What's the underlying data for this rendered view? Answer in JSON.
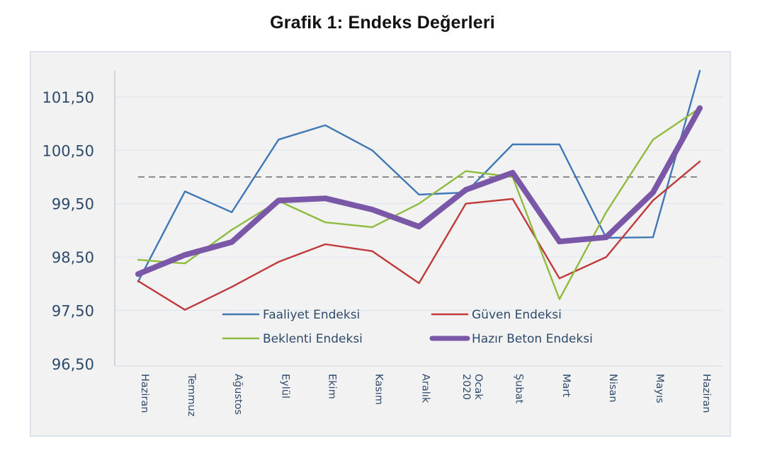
{
  "chart_data": {
    "type": "line",
    "title": "Grafik 1: Endeks Değerleri",
    "xlabel": "",
    "ylabel": "",
    "ylim": [
      96.5,
      102.0
    ],
    "yticks": [
      96.5,
      97.5,
      98.5,
      99.5,
      100.5,
      101.5
    ],
    "ytick_labels": [
      "96,50",
      "97,50",
      "98,50",
      "99,50",
      "100,50",
      "101,50"
    ],
    "grid": true,
    "reference_line": {
      "value": 100.0,
      "style": "dashed",
      "color": "#8c8c8c"
    },
    "categories": [
      [
        "Haziran"
      ],
      [
        "Temmuz"
      ],
      [
        "Ağustos"
      ],
      [
        "Eylül"
      ],
      [
        "Ekim"
      ],
      [
        "Kasım"
      ],
      [
        "Aralık"
      ],
      [
        "Ocak",
        "2020"
      ],
      [
        "Şubat"
      ],
      [
        "Mart"
      ],
      [
        "Nisan"
      ],
      [
        "Mayıs"
      ],
      [
        "Haziran"
      ]
    ],
    "legend_position": "bottom-center-inside",
    "series": [
      {
        "name": "Faaliyet Endeksi",
        "color": "#3f78b5",
        "weight": "thin",
        "values": [
          98.04,
          99.73,
          99.34,
          100.7,
          100.97,
          100.5,
          99.67,
          99.71,
          100.61,
          100.61,
          98.86,
          98.87,
          101.99
        ]
      },
      {
        "name": "Güven Endeksi",
        "color": "#c0393b",
        "weight": "thin",
        "values": [
          98.05,
          97.51,
          97.94,
          98.41,
          98.74,
          98.61,
          98.01,
          99.5,
          99.59,
          98.1,
          98.5,
          99.56,
          100.29
        ]
      },
      {
        "name": "Beklenti Endeksi",
        "color": "#8fbb3e",
        "weight": "thin",
        "values": [
          98.45,
          98.38,
          99.01,
          99.55,
          99.15,
          99.06,
          99.5,
          100.11,
          100.0,
          97.71,
          99.34,
          100.7,
          101.29
        ]
      },
      {
        "name": "Hazır Beton Endeksi",
        "color": "#7b57a8",
        "weight": "thick",
        "values": [
          98.18,
          98.54,
          98.78,
          99.56,
          99.6,
          99.39,
          99.07,
          99.76,
          100.08,
          98.79,
          98.87,
          99.71,
          101.29
        ]
      }
    ]
  }
}
